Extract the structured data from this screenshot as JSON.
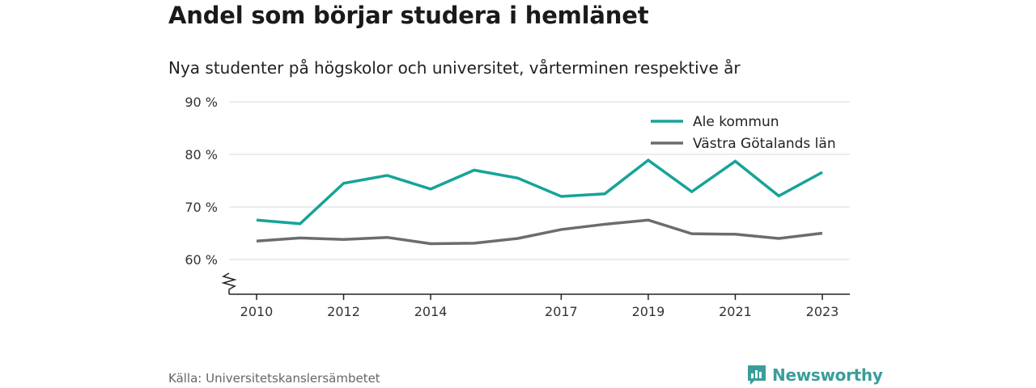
{
  "title": "Andel som börjar studera i hemlänet",
  "subtitle": "Nya studenter på högskolor och universitet, vårterminen respektive år",
  "source": "Källa: Universitetskanslersämbetet",
  "brand": "Newsworthy",
  "colors": {
    "ale": "#17a398",
    "vg": "#6d6b70",
    "grid": "#d9d9d9",
    "brand": "#3a9d9a"
  },
  "chart_data": {
    "type": "line",
    "x": [
      2010,
      2011,
      2012,
      2013,
      2014,
      2015,
      2016,
      2017,
      2018,
      2019,
      2020,
      2021,
      2022,
      2023
    ],
    "x_tick_labels": [
      "2010",
      "2012",
      "2014",
      "2017",
      "2019",
      "2021",
      "2023"
    ],
    "y_ticks": [
      60,
      70,
      80,
      90
    ],
    "y_tick_labels": [
      "60 %",
      "70 %",
      "80 %",
      "90 %"
    ],
    "ylim": [
      54,
      90
    ],
    "grid": true,
    "legend": "top-right",
    "series": [
      {
        "name": "Ale kommun",
        "values": [
          67.5,
          66.8,
          74.5,
          76.0,
          73.4,
          77.0,
          75.5,
          72.0,
          72.5,
          78.9,
          72.9,
          78.7,
          72.1,
          76.6
        ]
      },
      {
        "name": "Västra Götalands län",
        "values": [
          63.5,
          64.1,
          63.8,
          64.2,
          63.0,
          63.1,
          64.0,
          65.7,
          66.7,
          67.5,
          64.9,
          64.8,
          64.0,
          65.0
        ]
      }
    ]
  }
}
